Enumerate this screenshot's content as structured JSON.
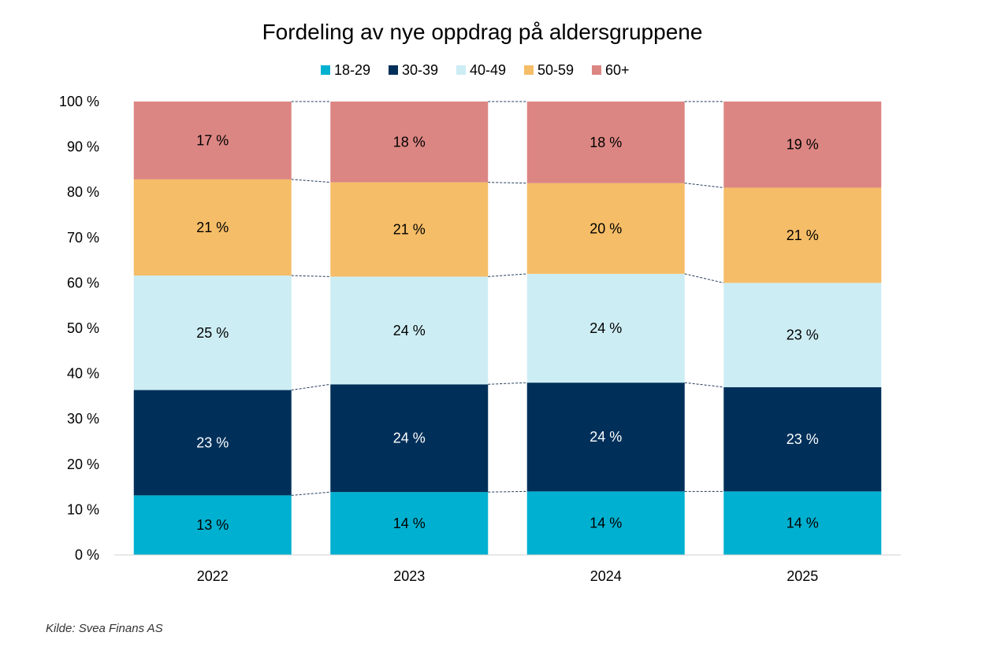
{
  "chart_data": {
    "type": "bar",
    "stacked": true,
    "title": "Fordeling av nye oppdrag på aldersgruppene",
    "xlabel": "",
    "ylabel": "",
    "categories": [
      "2022",
      "2023",
      "2024",
      "2025"
    ],
    "series": [
      {
        "name": "18-29",
        "color": "#00b0d0",
        "values": [
          13,
          14,
          14,
          14
        ],
        "labels": [
          "13 %",
          "14 %",
          "14 %",
          "14 %"
        ],
        "label_color": "#000000"
      },
      {
        "name": "30-39",
        "color": "#00305a",
        "values": [
          23,
          24,
          24,
          23
        ],
        "labels": [
          "23 %",
          "24 %",
          "24 %",
          "23 %"
        ],
        "label_color": "#ffffff"
      },
      {
        "name": "40-49",
        "color": "#cdedf4",
        "values": [
          25,
          24,
          24,
          23
        ],
        "labels": [
          "25 %",
          "24 %",
          "24 %",
          "23 %"
        ],
        "label_color": "#000000"
      },
      {
        "name": "50-59",
        "color": "#f5bd67",
        "values": [
          21,
          21,
          20,
          21
        ],
        "labels": [
          "21 %",
          "21 %",
          "20 %",
          "21 %"
        ],
        "label_color": "#000000"
      },
      {
        "name": "60+",
        "color": "#dc8683",
        "values": [
          17,
          18,
          18,
          19
        ],
        "labels": [
          "17 %",
          "18 %",
          "18 %",
          "19 %"
        ],
        "label_color": "#000000"
      }
    ],
    "y_ticks": [
      "0 %",
      "10 %",
      "20 %",
      "30 %",
      "40 %",
      "50 %",
      "60 %",
      "70 %",
      "80 %",
      "90 %",
      "100 %"
    ],
    "ylim": [
      0,
      100
    ],
    "grid": false,
    "legend": "top",
    "series_lines": "dashed",
    "series_line_color": "#1f3a5a"
  },
  "source": "Kilde: Svea Finans AS"
}
